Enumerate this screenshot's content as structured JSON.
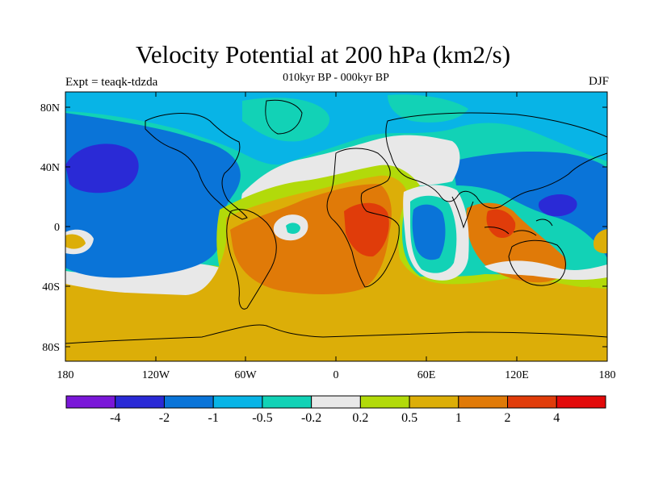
{
  "title": "Velocity Potential at 200 hPa (km2/s)",
  "subtitle": "010kyr BP - 000kyr BP",
  "left_label": "Expt = teaqk-tdzda",
  "right_label": "DJF",
  "lat_ticks": [
    "80N",
    "40N",
    "0",
    "40S",
    "80S"
  ],
  "lon_ticks": [
    "180",
    "120W",
    "60W",
    "0",
    "60E",
    "120E",
    "180"
  ],
  "colorbar": {
    "colors": [
      "#7a17d8",
      "#2a2ad6",
      "#0a74d8",
      "#08b4e6",
      "#12d2b6",
      "#e8e8e8",
      "#b2da0a",
      "#dcae08",
      "#e07a08",
      "#e03c0a",
      "#e20a0a"
    ],
    "labels": [
      "-4",
      "-2",
      "-1",
      "-0.5",
      "-0.2",
      "0.2",
      "0.5",
      "1",
      "2",
      "4"
    ]
  }
}
